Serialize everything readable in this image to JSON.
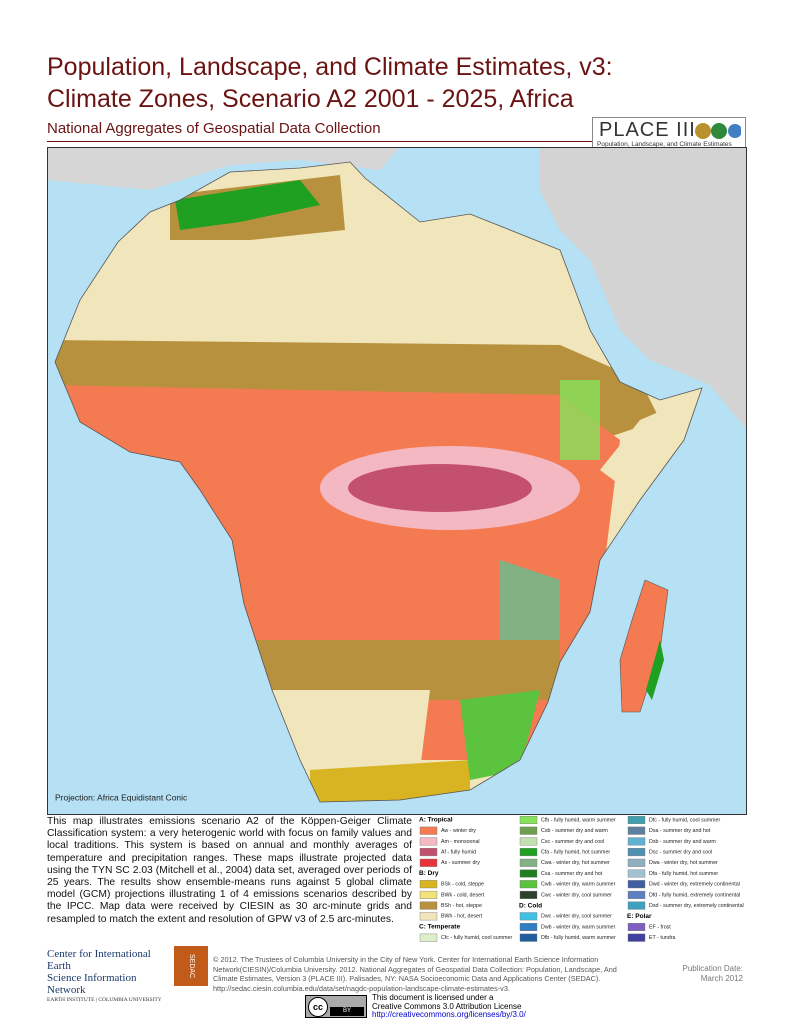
{
  "header": {
    "title_lines": [
      "Population, Landscape, and Climate Estimates, v3:",
      "Climate Zones, Scenario A2 2001 - 2025, Africa"
    ],
    "subtitle": "National Aggregates of Geospatial Data Collection",
    "logo": {
      "name": "PLACE III",
      "tagline": "Population, Landscape, and Climate Estimates"
    }
  },
  "map": {
    "projection": "Projection: Africa Equidistant Conic"
  },
  "description": "This map illustrates emissions scenario A2 of the Köppen-Geiger Climate Classification system: a very heterogenic world with focus on family values and local traditions. This system is based on annual and monthly averages of temperature and precipitation ranges. These maps illustrate projected data using the TYN SC 2.03 (Mitchell et al., 2004) data set, averaged over periods of 25 years. The results show ensemble-means runs against 5 global climate model (GCM) projections illustrating 1 of 4 emissions scenarios described by the IPCC. Map data were received by CIESIN as 30 arc-minute grids and resampled to match the extent and resolution of GPW v3 of 2.5 arc-minutes.",
  "legend": {
    "groups": [
      {
        "title": "A: Tropical",
        "items": [
          {
            "label": "Aw - winter dry",
            "color": "#f47a52"
          },
          {
            "label": "Am - monsoonal",
            "color": "#f4b8c2"
          },
          {
            "label": "Af - fully humid",
            "color": "#c2506e"
          },
          {
            "label": "As - summer dry",
            "color": "#e8333a"
          }
        ]
      },
      {
        "title": "B: Dry",
        "items": [
          {
            "label": "BSk - cold, steppe",
            "color": "#d9b422"
          },
          {
            "label": "BWk - cold, desert",
            "color": "#f2e27a"
          },
          {
            "label": "BSh - hot, steppe",
            "color": "#b8913f"
          },
          {
            "label": "BWh - hot, desert",
            "color": "#f1e6bb"
          }
        ]
      },
      {
        "title": "C: Temperate",
        "items": [
          {
            "label": "Cfc - fully humid, cool summer",
            "color": "#dcefc8"
          },
          {
            "label": "Cfb - fully humid, warm summer",
            "color": "#86e25a"
          },
          {
            "label": "Csb - summer dry and warm",
            "color": "#6f9f4e"
          },
          {
            "label": "Csc - summer dry and cool",
            "color": "#c3e0b2"
          },
          {
            "label": "Cfa - fully humid, hot summer",
            "color": "#1fa021"
          },
          {
            "label": "Cwa - winter dry, hot summer",
            "color": "#82b183"
          },
          {
            "label": "Csa - summer dry and hot",
            "color": "#1f7d22"
          },
          {
            "label": "Cwb - winter dry, warm summer",
            "color": "#5cc33f"
          },
          {
            "label": "Cwc - winter dry, cool summer",
            "color": "#2e3f2e"
          }
        ]
      },
      {
        "title": "D: Cold",
        "items": [
          {
            "label": "Dwc - winter dry, cool summer",
            "color": "#3fc1e3"
          },
          {
            "label": "Dwb - winter dry, warm summer",
            "color": "#2f7fc2"
          },
          {
            "label": "Dfb - fully humid, warm summer",
            "color": "#1f5e9f"
          },
          {
            "label": "Dfc - fully humid, cool summer",
            "color": "#3fa0b0"
          },
          {
            "label": "Dsa - summer dry and hot",
            "color": "#5f7f9f"
          },
          {
            "label": "Dsb - summer dry and warm",
            "color": "#60b0d0"
          },
          {
            "label": "Dsc - summer dry and cool",
            "color": "#4f8fb0"
          },
          {
            "label": "Dwa - winter dry, hot summer",
            "color": "#90b0c0"
          },
          {
            "label": "Dfa - fully humid, hot summer",
            "color": "#a2c2d2"
          },
          {
            "label": "Dwd - winter dry, extremely continental",
            "color": "#3f5fa0"
          },
          {
            "label": "Dfd - fully humid, extremely continental",
            "color": "#5f80c0"
          },
          {
            "label": "Dsd - summer dry, extremely continental",
            "color": "#3fa0c2"
          }
        ]
      },
      {
        "title": "E: Polar",
        "items": [
          {
            "label": "EF - frost",
            "color": "#7f5fc2"
          },
          {
            "label": "ET - tundra",
            "color": "#3f40a0"
          }
        ]
      }
    ]
  },
  "footer": {
    "org_lines": [
      "Center for International Earth",
      "Science Information Network",
      "EARTH INSTITUTE | COLUMBIA UNIVERSITY"
    ],
    "sedac": "SEDAC",
    "credits": "© 2012. The Trustees of Columbia University in the City of New York. Center for International Earth Science Information Network(CIESIN)/Columbia University. 2012. National Aggregates of Geospatial Data Collection: Population, Landscape, And Climate Estimates, Version 3 (PLACE III). Palisades, NY: NASA Socioeconomic Data and Applications Center (SEDAC). http://sedac.ciesin.columbia.edu/data/set/nagdc-population-landscape-climate-estimates-v3.",
    "publication_date": [
      "Publication Date:",
      "March 2012"
    ]
  },
  "license": {
    "badge": [
      "cc",
      "BY"
    ],
    "lines": [
      "This document is licensed under a",
      "Creative Commons 3.0 Attribution License",
      "http://creativecommons.org/licenses/by/3.0/"
    ]
  }
}
